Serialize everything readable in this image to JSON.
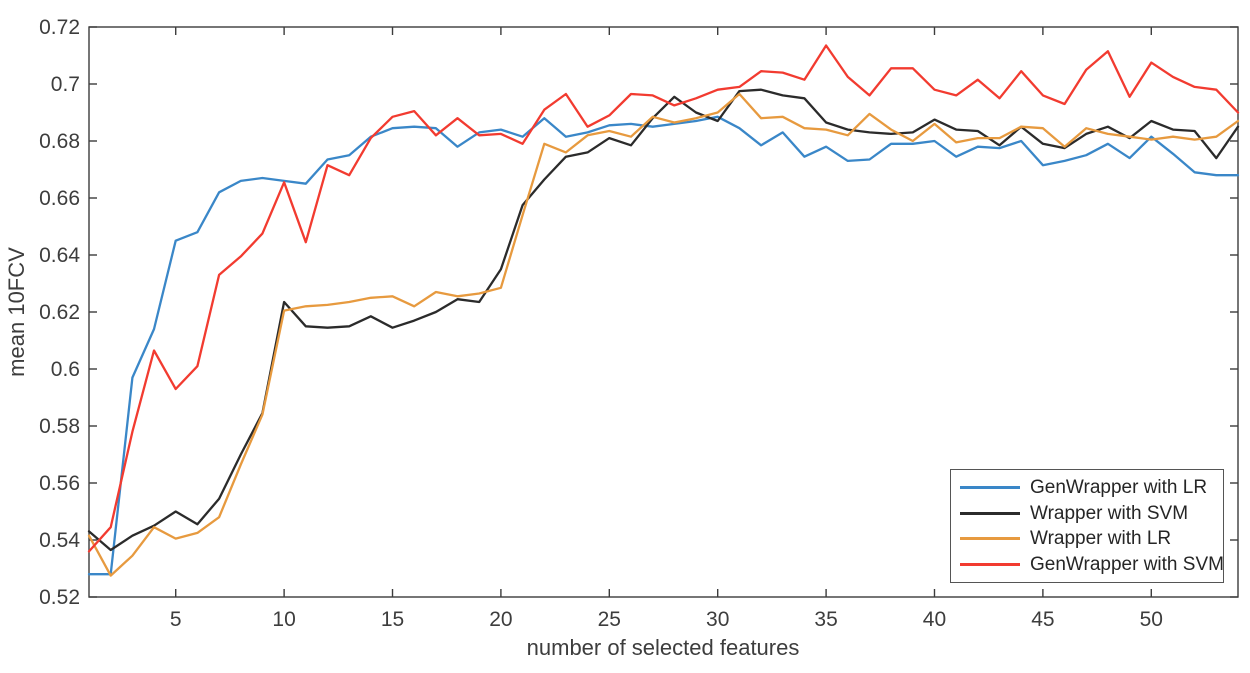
{
  "chart_data": {
    "type": "line",
    "title": "",
    "xlabel": "number of selected features",
    "ylabel": "mean 10FCV",
    "xlim": [
      1,
      54
    ],
    "ylim": [
      0.52,
      0.72
    ],
    "grid": false,
    "legend_position": "lower right",
    "axis_color": "#3c3c3c",
    "label_color": "#3d3d3d",
    "x_ticks": [
      5,
      10,
      15,
      20,
      25,
      30,
      35,
      40,
      45,
      50
    ],
    "x_tick_labels": [
      "5",
      "10",
      "15",
      "20",
      "25",
      "30",
      "35",
      "40",
      "45",
      "50"
    ],
    "y_ticks": [
      0.52,
      0.54,
      0.56,
      0.58,
      0.6,
      0.62,
      0.64,
      0.66,
      0.68,
      0.7,
      0.72
    ],
    "y_tick_labels": [
      "0.52",
      "0.54",
      "0.56",
      "0.58",
      "0.6",
      "0.62",
      "0.64",
      "0.66",
      "0.68",
      "0.7",
      "0.72"
    ],
    "x": [
      1,
      2,
      3,
      4,
      5,
      6,
      7,
      8,
      9,
      10,
      11,
      12,
      13,
      14,
      15,
      16,
      17,
      18,
      19,
      20,
      21,
      22,
      23,
      24,
      25,
      26,
      27,
      28,
      29,
      30,
      31,
      32,
      33,
      34,
      35,
      36,
      37,
      38,
      39,
      40,
      41,
      42,
      43,
      44,
      45,
      46,
      47,
      48,
      49,
      50,
      51,
      52,
      53,
      54
    ],
    "series": [
      {
        "name": "GenWrapper with LR",
        "color": "#3a87c8",
        "values": [
          0.528,
          0.528,
          0.597,
          0.614,
          0.645,
          0.648,
          0.662,
          0.666,
          0.667,
          0.666,
          0.665,
          0.6735,
          0.675,
          0.6815,
          0.6845,
          0.685,
          0.6845,
          0.678,
          0.683,
          0.684,
          0.6815,
          0.688,
          0.6815,
          0.683,
          0.6855,
          0.686,
          0.685,
          0.686,
          0.687,
          0.6885,
          0.6845,
          0.6785,
          0.683,
          0.6745,
          0.678,
          0.673,
          0.6735,
          0.679,
          0.679,
          0.68,
          0.6745,
          0.678,
          0.6775,
          0.68,
          0.6715,
          0.673,
          0.675,
          0.679,
          0.674,
          0.6815,
          0.6755,
          0.669,
          0.668,
          0.668
        ]
      },
      {
        "name": "Wrapper with SVM",
        "color": "#2b2b2b",
        "values": [
          0.543,
          0.5365,
          0.5415,
          0.545,
          0.55,
          0.5455,
          0.5545,
          0.57,
          0.5845,
          0.6235,
          0.615,
          0.6145,
          0.615,
          0.6185,
          0.6145,
          0.617,
          0.62,
          0.6245,
          0.6235,
          0.635,
          0.6575,
          0.6665,
          0.6745,
          0.676,
          0.681,
          0.6785,
          0.688,
          0.6955,
          0.69,
          0.687,
          0.6975,
          0.698,
          0.696,
          0.695,
          0.6865,
          0.684,
          0.683,
          0.6825,
          0.683,
          0.6875,
          0.684,
          0.6835,
          0.6785,
          0.685,
          0.679,
          0.6775,
          0.6825,
          0.685,
          0.681,
          0.687,
          0.684,
          0.6835,
          0.674,
          0.685
        ]
      },
      {
        "name": "Wrapper with LR",
        "color": "#e79a3f",
        "values": [
          0.5415,
          0.5275,
          0.5345,
          0.5445,
          0.5405,
          0.5425,
          0.548,
          0.5665,
          0.584,
          0.6205,
          0.622,
          0.6225,
          0.6235,
          0.625,
          0.6255,
          0.622,
          0.627,
          0.6255,
          0.6265,
          0.6285,
          0.654,
          0.679,
          0.676,
          0.682,
          0.6835,
          0.6815,
          0.6885,
          0.6865,
          0.688,
          0.69,
          0.6965,
          0.688,
          0.6885,
          0.6845,
          0.684,
          0.682,
          0.6895,
          0.684,
          0.68,
          0.686,
          0.6795,
          0.681,
          0.681,
          0.685,
          0.6845,
          0.678,
          0.6845,
          0.6825,
          0.6815,
          0.6805,
          0.6815,
          0.6805,
          0.6815,
          0.687
        ]
      },
      {
        "name": "GenWrapper with SVM",
        "color": "#f23b30",
        "values": [
          0.536,
          0.5445,
          0.578,
          0.6065,
          0.593,
          0.601,
          0.633,
          0.6395,
          0.6475,
          0.6655,
          0.6445,
          0.6715,
          0.668,
          0.681,
          0.6885,
          0.6905,
          0.682,
          0.688,
          0.682,
          0.6825,
          0.679,
          0.691,
          0.6965,
          0.685,
          0.689,
          0.6965,
          0.696,
          0.6925,
          0.695,
          0.698,
          0.699,
          0.7045,
          0.704,
          0.7015,
          0.7135,
          0.7025,
          0.696,
          0.7055,
          0.7055,
          0.698,
          0.696,
          0.7015,
          0.695,
          0.7045,
          0.696,
          0.693,
          0.705,
          0.7115,
          0.6955,
          0.7075,
          0.7025,
          0.699,
          0.698,
          0.69
        ]
      }
    ]
  }
}
